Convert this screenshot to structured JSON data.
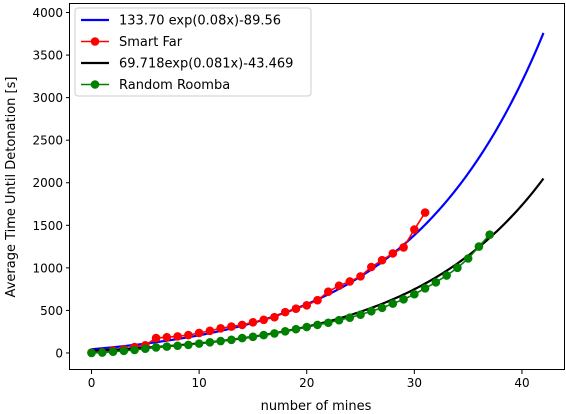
{
  "chart_data": {
    "type": "line",
    "title": "",
    "xlabel": "number of mines",
    "ylabel": "Average Time Until Detonation [s]",
    "xlim": [
      -2,
      44
    ],
    "ylim": [
      -200,
      4100
    ],
    "xticks": [
      0,
      10,
      20,
      30,
      40
    ],
    "yticks": [
      0,
      500,
      1000,
      1500,
      2000,
      2500,
      3000,
      3500,
      4000
    ],
    "grid": false,
    "legend": "top-left",
    "series": [
      {
        "name": "133.70 exp(0.08x)-89.56",
        "kind": "fit",
        "color": "#0000ff",
        "fit": {
          "a": 133.7,
          "b": 0.08,
          "c": -89.56
        },
        "x_range": [
          0,
          42
        ]
      },
      {
        "name": "Smart Far",
        "kind": "points",
        "color": "#ff0000",
        "x": [
          0,
          1,
          2,
          3,
          4,
          5,
          6,
          7,
          8,
          9,
          10,
          11,
          12,
          13,
          14,
          15,
          16,
          17,
          18,
          19,
          20,
          21,
          22,
          23,
          24,
          25,
          26,
          27,
          28,
          29,
          30,
          31
        ],
        "y": [
          5,
          10,
          30,
          45,
          70,
          90,
          175,
          185,
          195,
          210,
          235,
          260,
          290,
          310,
          330,
          360,
          390,
          420,
          480,
          520,
          560,
          620,
          720,
          790,
          840,
          900,
          1010,
          1090,
          1170,
          1240,
          1450,
          1650
        ]
      },
      {
        "name": "69.718exp(0.081x)-43.469",
        "kind": "fit",
        "color": "#000000",
        "fit": {
          "a": 69.718,
          "b": 0.081,
          "c": -43.469
        },
        "x_range": [
          0,
          42
        ]
      },
      {
        "name": "Random Roomba",
        "kind": "points",
        "color": "#008000",
        "x": [
          0,
          1,
          2,
          3,
          4,
          5,
          6,
          7,
          8,
          9,
          10,
          11,
          12,
          13,
          14,
          15,
          16,
          17,
          18,
          19,
          20,
          21,
          22,
          23,
          24,
          25,
          26,
          27,
          28,
          29,
          30,
          31,
          32,
          33,
          34,
          35,
          36,
          37
        ],
        "y": [
          0,
          5,
          15,
          25,
          35,
          50,
          65,
          75,
          85,
          95,
          110,
          125,
          140,
          155,
          175,
          190,
          210,
          230,
          255,
          280,
          305,
          330,
          355,
          385,
          415,
          450,
          490,
          530,
          580,
          630,
          690,
          760,
          830,
          910,
          1000,
          1110,
          1250,
          1390
        ]
      }
    ]
  }
}
